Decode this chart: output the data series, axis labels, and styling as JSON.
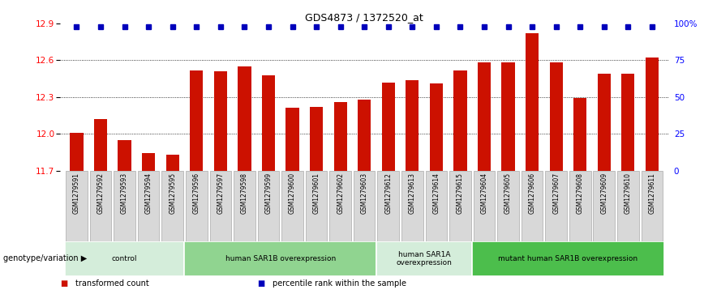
{
  "title": "GDS4873 / 1372520_at",
  "samples": [
    "GSM1279591",
    "GSM1279592",
    "GSM1279593",
    "GSM1279594",
    "GSM1279595",
    "GSM1279596",
    "GSM1279597",
    "GSM1279598",
    "GSM1279599",
    "GSM1279600",
    "GSM1279601",
    "GSM1279602",
    "GSM1279603",
    "GSM1279612",
    "GSM1279613",
    "GSM1279614",
    "GSM1279615",
    "GSM1279604",
    "GSM1279605",
    "GSM1279606",
    "GSM1279607",
    "GSM1279608",
    "GSM1279609",
    "GSM1279610",
    "GSM1279611"
  ],
  "values": [
    12.01,
    12.12,
    11.95,
    11.84,
    11.83,
    12.52,
    12.51,
    12.55,
    12.48,
    12.21,
    12.22,
    12.26,
    12.28,
    12.42,
    12.44,
    12.41,
    12.52,
    12.58,
    12.58,
    12.82,
    12.58,
    12.29,
    12.49,
    12.49,
    12.62
  ],
  "groups": [
    {
      "label": "control",
      "start": 0,
      "end": 5,
      "color": "#d4edda"
    },
    {
      "label": "human SAR1B overexpression",
      "start": 5,
      "end": 13,
      "color": "#90d490"
    },
    {
      "label": "human SAR1A\noverexpression",
      "start": 13,
      "end": 17,
      "color": "#d4edda"
    },
    {
      "label": "mutant human SAR1B overexpression",
      "start": 17,
      "end": 25,
      "color": "#4cbe4c"
    }
  ],
  "ylim": [
    11.7,
    12.9
  ],
  "yticks": [
    11.7,
    12.0,
    12.3,
    12.6,
    12.9
  ],
  "bar_color": "#cc1100",
  "dot_color": "#0000bb",
  "grid_lines": [
    12.0,
    12.3,
    12.6
  ],
  "percentile_yticks": [
    0,
    25,
    50,
    75,
    100
  ],
  "percentile_ylabels": [
    "0",
    "25",
    "50",
    "75",
    "100%"
  ],
  "legend_items": [
    {
      "color": "#cc1100",
      "label": "transformed count"
    },
    {
      "color": "#0000bb",
      "label": "percentile rank within the sample"
    }
  ],
  "tick_bg_color": "#d8d8d8",
  "tick_border_color": "#aaaaaa"
}
